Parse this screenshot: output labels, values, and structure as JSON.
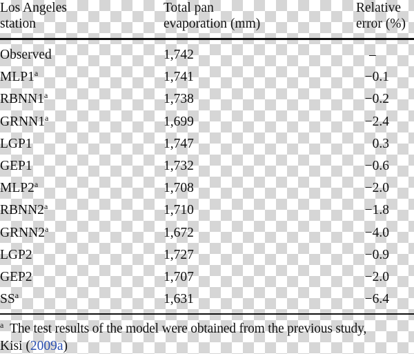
{
  "table": {
    "header": [
      [
        "Los Angeles",
        "station"
      ],
      [
        "Total pan",
        "evaporation (mm)"
      ],
      [
        "Relative",
        "error (%)"
      ]
    ],
    "rows": [
      {
        "model": "Observed",
        "total": "1,742",
        "error": "–"
      },
      {
        "model": "MLP1",
        "note": "a",
        "total": "1,741",
        "error": "−0.1"
      },
      {
        "model": "RBNN1",
        "note": "a",
        "total": "1,738",
        "error": "−0.2"
      },
      {
        "model": "GRNN1",
        "note": "a",
        "total": "1,699",
        "error": "−2.4"
      },
      {
        "model": "LGP1",
        "total": "1,747",
        "error": "0.3"
      },
      {
        "model": "GEP1",
        "total": "1,732",
        "error": "−0.6"
      },
      {
        "model": "MLP2",
        "note": "a",
        "total": "1,708",
        "error": "−2.0"
      },
      {
        "model": "RBNN2",
        "note": "a",
        "total": "1,710",
        "error": "−1.8"
      },
      {
        "model": "GRNN2",
        "note": "a",
        "total": "1,672",
        "error": "−4.0"
      },
      {
        "model": "LGP2",
        "total": "1,727",
        "error": "−0.9"
      },
      {
        "model": "GEP2",
        "total": "1,707",
        "error": "−2.0"
      },
      {
        "model": "SS",
        "note": "a",
        "total": "1,631",
        "error": "−6.4"
      }
    ],
    "footnote": {
      "marker": "a",
      "line1": "The test results of the model were obtained from the previous study,",
      "parts": [
        "Kisi (",
        "2009a",
        ")"
      ]
    }
  }
}
